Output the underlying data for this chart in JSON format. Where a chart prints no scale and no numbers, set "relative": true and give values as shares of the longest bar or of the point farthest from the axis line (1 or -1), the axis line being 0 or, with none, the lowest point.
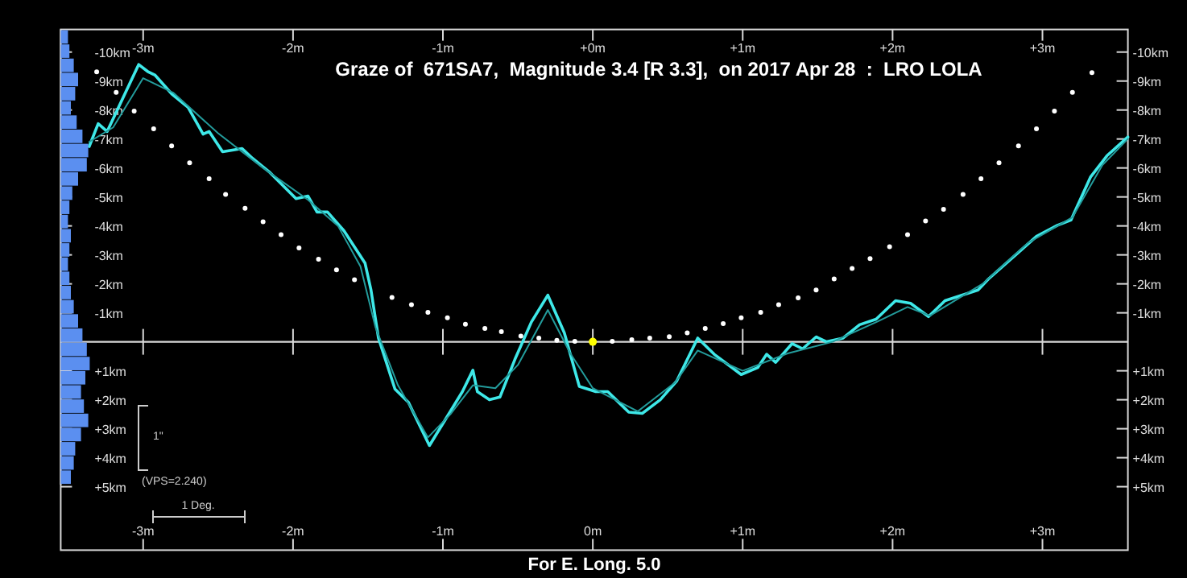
{
  "chart_data": [
    {
      "type": "line",
      "title": "Graze of  671SA7,  Magnitude 3.4 [R 3.3],  on 2017 Apr 28  :  LRO LOLA",
      "xlim": [
        -3.55,
        3.57
      ],
      "xticks": [
        {
          "value": -3,
          "label": "-3m"
        },
        {
          "value": -2,
          "label": "-2m"
        },
        {
          "value": -1,
          "label": "-1m"
        },
        {
          "value": 0,
          "label": "0m"
        },
        {
          "value": 1,
          "label": "+1m"
        },
        {
          "value": 2,
          "label": "+2m"
        },
        {
          "value": 3,
          "label": "+3m"
        }
      ],
      "x2lim": [
        -3.55,
        3.57
      ],
      "x2ticks": [
        {
          "value": -3,
          "label": "-3m"
        },
        {
          "value": -2,
          "label": "-2m"
        },
        {
          "value": -1,
          "label": "-1m"
        },
        {
          "value": 0,
          "label": "+0m"
        },
        {
          "value": 1,
          "label": "+1m"
        },
        {
          "value": 2,
          "label": "+2m"
        },
        {
          "value": 3,
          "label": "+3m"
        }
      ],
      "ylim": [
        7.19,
        -10.78
      ],
      "yticks": [
        {
          "value": -10,
          "label": "-10km"
        },
        {
          "value": -9,
          "label": "-9km"
        },
        {
          "value": -8,
          "label": "-8km"
        },
        {
          "value": -7,
          "label": "-7km"
        },
        {
          "value": -6,
          "label": "-6km"
        },
        {
          "value": -5,
          "label": "-5km"
        },
        {
          "value": -4,
          "label": "-4km"
        },
        {
          "value": -3,
          "label": "-3km"
        },
        {
          "value": -2,
          "label": "-2km"
        },
        {
          "value": -1,
          "label": "-1km"
        },
        {
          "value": 1,
          "label": "+1km"
        },
        {
          "value": 2,
          "label": "+2km"
        },
        {
          "value": 3,
          "label": "+3km"
        },
        {
          "value": 4,
          "label": "+4km"
        },
        {
          "value": 5,
          "label": "+5km"
        }
      ],
      "y2lim": [
        7.19,
        -10.78
      ],
      "y2ticks": [
        {
          "value": -10,
          "label": "-10km"
        },
        {
          "value": -9,
          "label": "-9km"
        },
        {
          "value": -8,
          "label": "-8km"
        },
        {
          "value": -7,
          "label": "-7km"
        },
        {
          "value": -6,
          "label": "-6km"
        },
        {
          "value": -5,
          "label": "-5km"
        },
        {
          "value": -4,
          "label": "-4km"
        },
        {
          "value": -3,
          "label": "-3km"
        },
        {
          "value": -2,
          "label": "-2km"
        },
        {
          "value": -1,
          "label": "-1km"
        },
        {
          "value": 1,
          "label": "+1km"
        },
        {
          "value": 2,
          "label": "+2km"
        },
        {
          "value": 3,
          "label": "+3km"
        },
        {
          "value": 4,
          "label": "+4km"
        },
        {
          "value": 5,
          "label": "+5km"
        }
      ],
      "ref_lines": [
        {
          "axis": "y",
          "value": 0,
          "color": "#d8d8d8"
        }
      ],
      "grid": false,
      "line_style": "solid",
      "annotations": [
        "For E. Long. 5.0",
        "1\"",
        "(VPS=2.240)",
        "1 Deg."
      ],
      "series": [
        {
          "type": "line",
          "color": "#3ee8e8",
          "x": [
            -3.36,
            -3.3,
            -3.24,
            -3.03,
            -2.97,
            -2.92,
            -2.81,
            -2.7,
            -2.6,
            -2.56,
            -2.47,
            -2.34,
            -2.27,
            -2.16,
            -1.98,
            -1.9,
            -1.84,
            -1.77,
            -1.66,
            -1.52,
            -1.48,
            -1.43,
            -1.32,
            -1.23,
            -1.09,
            -0.98,
            -0.87,
            -0.8,
            -0.77,
            -0.69,
            -0.62,
            -0.52,
            -0.41,
            -0.3,
            -0.19,
            -0.09,
            0.02,
            0.1,
            0.24,
            0.33,
            0.45,
            0.56,
            0.7,
            0.81,
            0.99,
            1.1,
            1.16,
            1.22,
            1.33,
            1.4,
            1.49,
            1.56,
            1.67,
            1.78,
            1.89,
            2.02,
            2.12,
            2.24,
            2.35,
            2.57,
            2.64,
            2.78,
            2.96,
            3.1,
            3.19,
            3.32,
            3.43,
            3.57
          ],
          "values": [
            -6.74,
            -7.53,
            -7.26,
            -9.57,
            -9.33,
            -9.2,
            -8.56,
            -8.09,
            -7.17,
            -7.26,
            -6.56,
            -6.67,
            -6.33,
            -5.87,
            -4.94,
            -5.03,
            -4.48,
            -4.48,
            -3.83,
            -2.72,
            -1.79,
            -0.13,
            1.63,
            2.09,
            3.58,
            2.65,
            1.72,
            0.98,
            1.72,
            2.0,
            1.91,
            0.61,
            -0.68,
            -1.61,
            -0.31,
            1.54,
            1.72,
            1.72,
            2.43,
            2.47,
            2.0,
            1.35,
            -0.13,
            0.43,
            1.13,
            0.89,
            0.43,
            0.71,
            0.06,
            0.24,
            -0.17,
            0.0,
            -0.13,
            -0.59,
            -0.78,
            -1.42,
            -1.33,
            -0.87,
            -1.42,
            -1.79,
            -2.17,
            -2.81,
            -3.64,
            -4.02,
            -4.2,
            -5.68,
            -6.42,
            -7.07
          ]
        },
        {
          "type": "line",
          "color": "#239c9c",
          "x": [
            -3.36,
            -3.2,
            -3.0,
            -2.8,
            -2.5,
            -2.2,
            -1.9,
            -1.7,
            -1.55,
            -1.45,
            -1.3,
            -1.1,
            -0.95,
            -0.8,
            -0.65,
            -0.5,
            -0.3,
            -0.15,
            0.0,
            0.3,
            0.55,
            0.7,
            1.0,
            1.3,
            1.6,
            1.9,
            2.1,
            2.25,
            2.6,
            2.9,
            3.2,
            3.4,
            3.57
          ],
          "values": [
            -6.9,
            -7.4,
            -9.1,
            -8.6,
            -7.2,
            -6.0,
            -4.9,
            -4.0,
            -2.6,
            -0.5,
            1.5,
            3.3,
            2.5,
            1.5,
            1.6,
            0.8,
            -1.1,
            0.4,
            1.6,
            2.4,
            1.4,
            0.3,
            1.0,
            0.4,
            0.0,
            -0.7,
            -1.2,
            -0.9,
            -2.0,
            -3.4,
            -4.3,
            -6.1,
            -7.0
          ]
        },
        {
          "type": "scatter",
          "color": "#ffffff",
          "x": [
            -3.31,
            -3.18,
            -3.06,
            -2.93,
            -2.81,
            -2.69,
            -2.56,
            -2.45,
            -2.32,
            -2.2,
            -2.08,
            -1.96,
            -1.83,
            -1.71,
            -1.59,
            -1.34,
            -1.21,
            -1.1,
            -0.97,
            -0.85,
            -0.72,
            -0.61,
            -0.48,
            -0.36,
            -0.24,
            -0.12,
            0.13,
            0.26,
            0.38,
            0.51,
            0.63,
            0.75,
            0.87,
            0.99,
            1.12,
            1.24,
            1.37,
            1.49,
            1.61,
            1.73,
            1.85,
            1.98,
            2.1,
            2.22,
            2.34,
            2.47,
            2.59,
            2.71,
            2.84,
            2.96,
            3.08,
            3.2,
            3.33
          ],
          "values": [
            -9.32,
            -8.61,
            -7.96,
            -7.35,
            -6.76,
            -6.18,
            -5.63,
            -5.09,
            -4.61,
            -4.14,
            -3.7,
            -3.24,
            -2.85,
            -2.48,
            -2.14,
            -1.53,
            -1.28,
            -1.02,
            -0.83,
            -0.61,
            -0.46,
            -0.35,
            -0.2,
            -0.13,
            -0.05,
            -0.02,
            -0.02,
            -0.07,
            -0.13,
            -0.18,
            -0.31,
            -0.46,
            -0.63,
            -0.83,
            -1.02,
            -1.28,
            -1.52,
            -1.79,
            -2.17,
            -2.53,
            -2.87,
            -3.28,
            -3.7,
            -4.17,
            -4.57,
            -5.09,
            -5.63,
            -6.18,
            -6.76,
            -7.35,
            -7.96,
            -8.61,
            -9.29
          ]
        },
        {
          "type": "scatter",
          "color": "#ffff00",
          "x": [
            0
          ],
          "values": [
            0
          ]
        }
      ]
    },
    {
      "type": "bar",
      "orientation": "horizontal",
      "relative": true,
      "color": "#5b8ff0",
      "categories": [
        null,
        null,
        null,
        null,
        null,
        null,
        null,
        null,
        null,
        null,
        null,
        null,
        null,
        null,
        null,
        null,
        null,
        null,
        null,
        null,
        null,
        null,
        null,
        null,
        null,
        null,
        null,
        null,
        null,
        null,
        null,
        null
      ],
      "values": [
        0.25,
        0.3,
        0.45,
        0.6,
        0.5,
        0.35,
        0.55,
        0.75,
        0.95,
        0.9,
        0.6,
        0.4,
        0.3,
        0.25,
        0.35,
        0.3,
        0.25,
        0.3,
        0.35,
        0.45,
        0.6,
        0.75,
        0.9,
        1.0,
        0.85,
        0.7,
        0.8,
        0.95,
        0.7,
        0.5,
        0.45,
        0.35
      ]
    }
  ]
}
